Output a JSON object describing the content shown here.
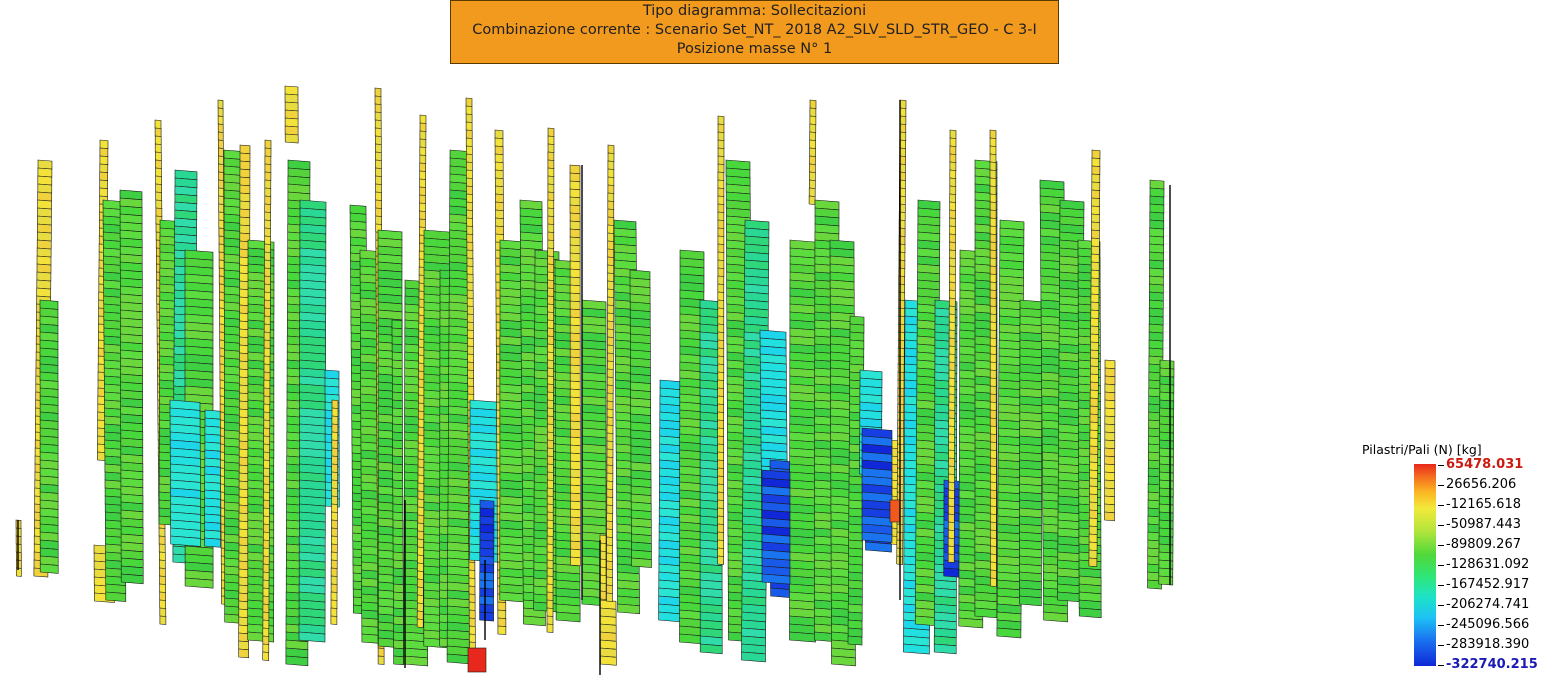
{
  "header": {
    "line1": "Tipo diagramma: Sollecitazioni",
    "line2": "Combinazione corrente : Scenario Set_NT_ 2018 A2_SLV_SLD_STR_GEO - C 3-I",
    "line3": "Posizione masse N° 1"
  },
  "legend": {
    "title": "Pilastri/Pali (N) [kg]",
    "values": [
      "65478.031",
      "26656.206",
      "-12165.618",
      "-50987.443",
      "-89809.267",
      "-128631.092",
      "-167452.917",
      "-206274.741",
      "-245096.566",
      "-283918.390",
      "-322740.215"
    ]
  },
  "colors": {
    "header_bg": "#f29a1e",
    "yellow": "#f2d43a",
    "green": "#48d83c",
    "cyan": "#22dfe0",
    "blue": "#1a5ae8",
    "red": "#e8281c"
  }
}
